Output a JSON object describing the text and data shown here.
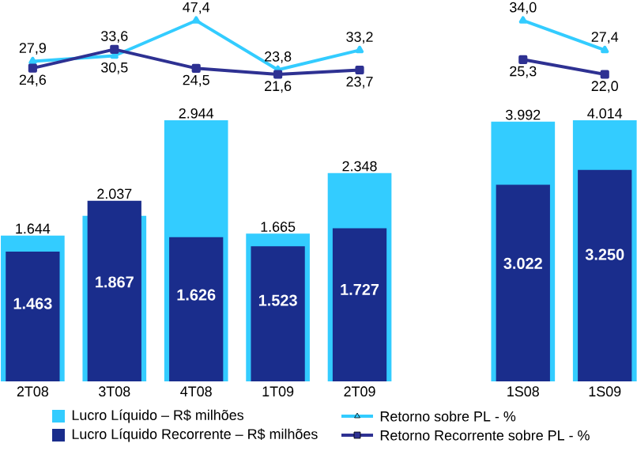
{
  "chart_data": [
    {
      "type": "line",
      "categories": [
        null,
        null,
        null,
        null,
        null
      ],
      "series": [
        {
          "name": "Retorno sobre PL - %",
          "color": "#33ccff",
          "marker": "triangle",
          "values": [
            27.9,
            30.5,
            47.4,
            23.8,
            33.2
          ],
          "value_labels": [
            "27,9",
            "30,5",
            "47,4",
            "23,8",
            "33,2"
          ]
        },
        {
          "name": "Retorno Recorrente sobre PL - %",
          "color": "#2e3192",
          "marker": "square",
          "values": [
            24.6,
            33.6,
            24.5,
            21.6,
            23.7
          ],
          "value_labels": [
            "24,6",
            "33,6",
            "24,5",
            "21,6",
            "23,7"
          ]
        }
      ],
      "legend": "bottom",
      "tick_labels": false
    },
    {
      "type": "bar",
      "categories": [
        "2T08",
        "3T08",
        "4T08",
        "1T09",
        "2T09"
      ],
      "series": [
        {
          "name": "Lucro Líquido – R$ milhões",
          "color": "#33ccff",
          "values": [
            1644,
            1867,
            2944,
            1665,
            2348
          ],
          "value_labels": [
            "1.644",
            "1.867",
            "2.944",
            "1.665",
            "2.348"
          ]
        },
        {
          "name": "Lucro Líquido Recorrente – R$ milhões",
          "color": "#1a2d8c",
          "values": [
            1463,
            2037,
            1626,
            1523,
            1727
          ],
          "value_labels": [
            "1.463",
            "2.037",
            "1.626",
            "1.523",
            "1.727"
          ]
        }
      ],
      "legend": "bottom",
      "tick_labels": "x"
    },
    {
      "type": "line",
      "categories": [
        null,
        null
      ],
      "series": [
        {
          "color": "#33ccff",
          "marker": "triangle",
          "values": [
            34.0,
            27.4
          ],
          "value_labels": [
            "34,0",
            "27,4"
          ]
        },
        {
          "color": "#2e3192",
          "marker": "square",
          "values": [
            25.3,
            22.0
          ],
          "value_labels": [
            "25,3",
            "22,0"
          ]
        }
      ],
      "tick_labels": false
    },
    {
      "type": "bar",
      "categories": [
        "1S08",
        "1S09"
      ],
      "series": [
        {
          "color": "#33ccff",
          "values": [
            3992,
            4014
          ],
          "value_labels": [
            "3.992",
            "4.014"
          ]
        },
        {
          "color": "#1a2d8c",
          "values": [
            3022,
            3250
          ],
          "value_labels": [
            "3.022",
            "3.250"
          ]
        }
      ],
      "tick_labels": "x"
    }
  ]
}
